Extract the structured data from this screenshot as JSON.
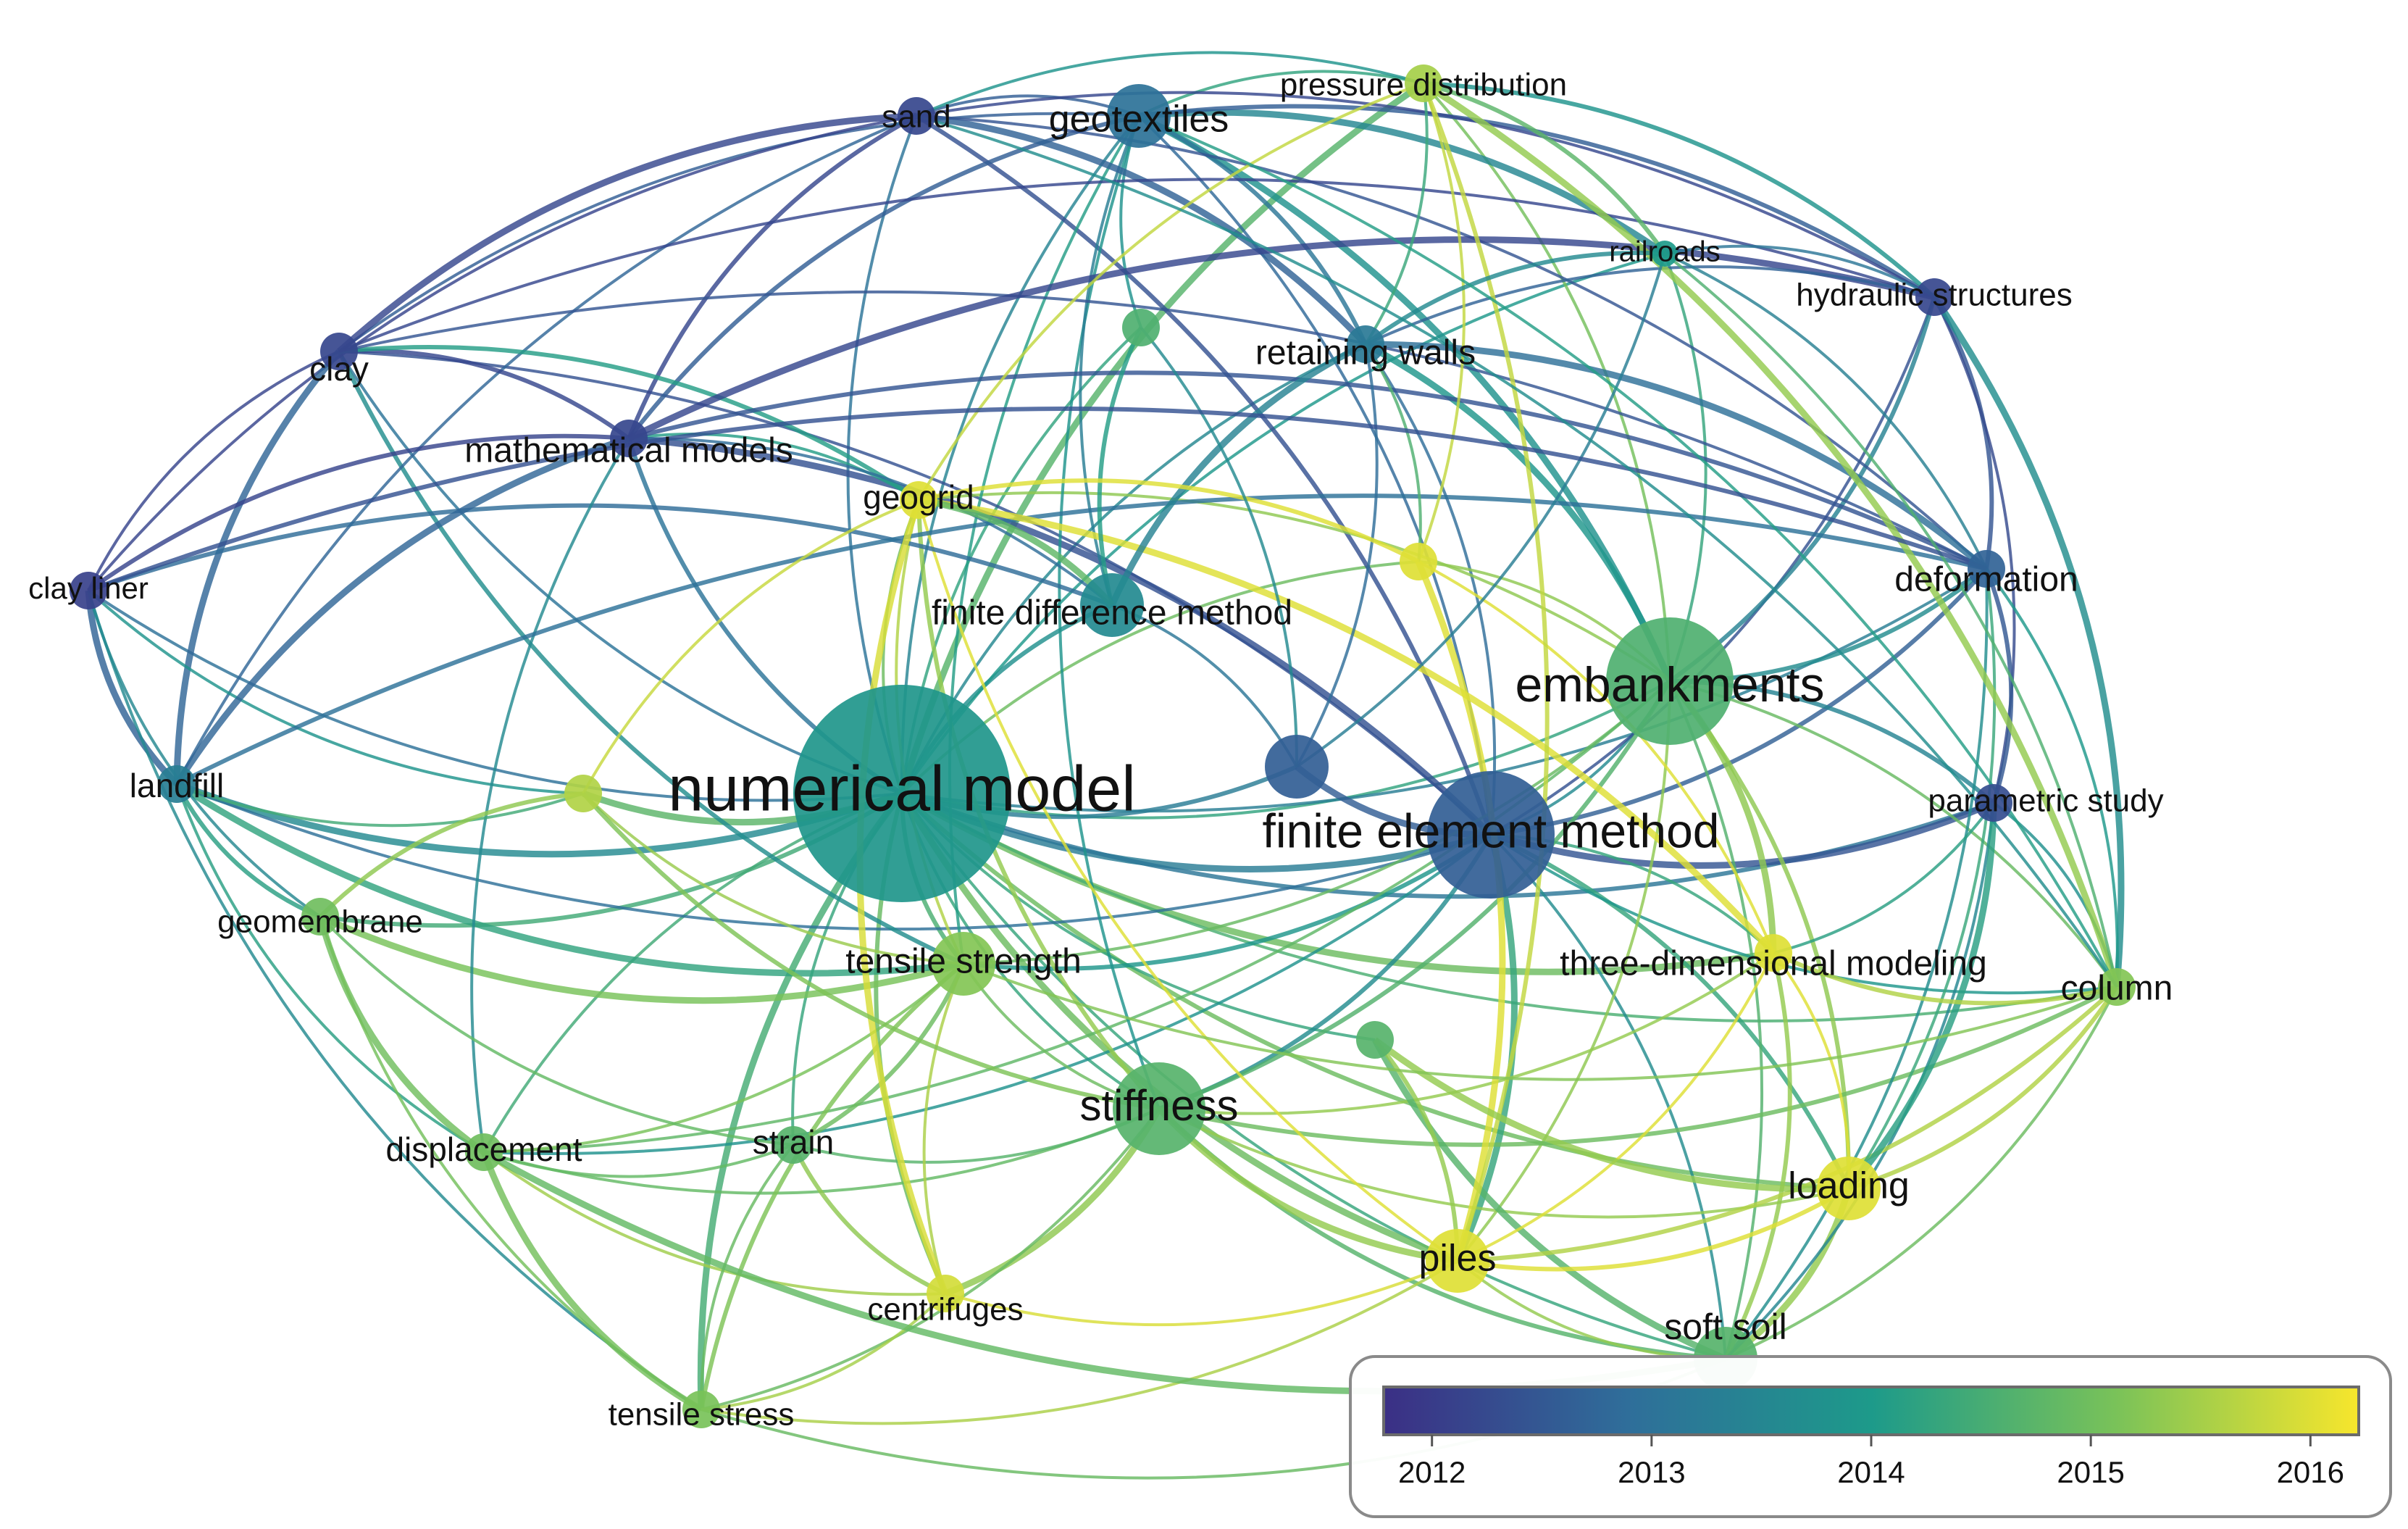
{
  "nodes": [
    {
      "id": "numerical-model",
      "label": "numerical model",
      "year": 2013.9,
      "size": "xl"
    },
    {
      "id": "finite-element-method",
      "label": "finite element method",
      "year": 2012.6,
      "size": "l"
    },
    {
      "id": "embankments",
      "label": "embankments",
      "year": 2014.6,
      "size": "l"
    },
    {
      "id": "stiffness",
      "label": "stiffness",
      "year": 2014.7,
      "size": "ml"
    },
    {
      "id": "tensile-strength",
      "label": "tensile strength",
      "year": 2015.2,
      "size": "m"
    },
    {
      "id": "soft-soil",
      "label": "soft soil",
      "year": 2014.7,
      "size": "m"
    },
    {
      "id": "piles",
      "label": "piles",
      "year": 2016.0,
      "size": "m"
    },
    {
      "id": "loading",
      "label": "loading",
      "year": 2016.0,
      "size": "m"
    },
    {
      "id": "geotextiles",
      "label": "geotextiles",
      "year": 2013.0,
      "size": "m"
    },
    {
      "id": "retaining-walls",
      "label": "retaining walls",
      "year": 2013.2,
      "size": "s"
    },
    {
      "id": "finite-difference-method",
      "label": "finite difference method",
      "year": 2013.6,
      "size": "m"
    },
    {
      "id": "three-dimensional-modeling",
      "label": "three-dimensional modeling",
      "year": 2016.0,
      "size": "s"
    },
    {
      "id": "deformation",
      "label": "deformation",
      "year": 2012.7,
      "size": "s"
    },
    {
      "id": "parametric-study",
      "label": "parametric study",
      "year": 2012.3,
      "size": "s"
    },
    {
      "id": "column",
      "label": "column",
      "year": 2015.2,
      "size": "s"
    },
    {
      "id": "sand",
      "label": "sand",
      "year": 2012.2,
      "size": "s"
    },
    {
      "id": "pressure-distribution",
      "label": "pressure distribution",
      "year": 2015.5,
      "size": "s"
    },
    {
      "id": "railroads",
      "label": "railroads",
      "year": 2014.0,
      "size": "xs"
    },
    {
      "id": "hydraulic-structures",
      "label": "hydraulic structures",
      "year": 2012.2,
      "size": "s"
    },
    {
      "id": "clay",
      "label": "clay",
      "year": 2012.2,
      "size": "s"
    },
    {
      "id": "mathematical-models",
      "label": "mathematical models",
      "year": 2012.2,
      "size": "s"
    },
    {
      "id": "geogrid",
      "label": "geogrid",
      "year": 2016.0,
      "size": "s"
    },
    {
      "id": "clay-liner",
      "label": "clay liner",
      "year": 2012.1,
      "size": "s"
    },
    {
      "id": "landfill",
      "label": "landfill",
      "year": 2013.3,
      "size": "s"
    },
    {
      "id": "geomembrane",
      "label": "geomembrane",
      "year": 2015.0,
      "size": "s"
    },
    {
      "id": "displacement",
      "label": "displacement",
      "year": 2015.0,
      "size": "s"
    },
    {
      "id": "strain",
      "label": "strain",
      "year": 2014.7,
      "size": "s"
    },
    {
      "id": "centrifuges",
      "label": "centrifuges",
      "year": 2015.9,
      "size": "s"
    },
    {
      "id": "tensile-stress",
      "label": "tensile stress",
      "year": 2015.1,
      "size": "s"
    },
    {
      "id": "unlabeled-a",
      "label": "",
      "year": 2014.6,
      "size": "s"
    },
    {
      "id": "unlabeled-b",
      "label": "",
      "year": 2012.6,
      "size": "m"
    },
    {
      "id": "unlabeled-c",
      "label": "",
      "year": 2016.0,
      "size": "s"
    },
    {
      "id": "unlabeled-d",
      "label": "",
      "year": 2014.7,
      "size": "s"
    },
    {
      "id": "unlabeled-e",
      "label": "",
      "year": 2015.6,
      "size": "s"
    }
  ],
  "edges": [
    [
      "numerical-model",
      "finite-element-method"
    ],
    [
      "numerical-model",
      "embankments"
    ],
    [
      "numerical-model",
      "stiffness"
    ],
    [
      "numerical-model",
      "tensile-strength"
    ],
    [
      "numerical-model",
      "soft-soil"
    ],
    [
      "numerical-model",
      "piles"
    ],
    [
      "numerical-model",
      "loading"
    ],
    [
      "numerical-model",
      "geotextiles"
    ],
    [
      "numerical-model",
      "retaining-walls"
    ],
    [
      "numerical-model",
      "finite-difference-method"
    ],
    [
      "numerical-model",
      "three-dimensional-modeling"
    ],
    [
      "numerical-model",
      "deformation"
    ],
    [
      "numerical-model",
      "parametric-study"
    ],
    [
      "numerical-model",
      "column"
    ],
    [
      "numerical-model",
      "sand"
    ],
    [
      "numerical-model",
      "pressure-distribution"
    ],
    [
      "numerical-model",
      "railroads"
    ],
    [
      "numerical-model",
      "clay"
    ],
    [
      "numerical-model",
      "mathematical-models"
    ],
    [
      "numerical-model",
      "geogrid"
    ],
    [
      "numerical-model",
      "landfill"
    ],
    [
      "numerical-model",
      "geomembrane"
    ],
    [
      "numerical-model",
      "displacement"
    ],
    [
      "numerical-model",
      "strain"
    ],
    [
      "numerical-model",
      "centrifuges"
    ],
    [
      "numerical-model",
      "tensile-stress"
    ],
    [
      "numerical-model",
      "unlabeled-a"
    ],
    [
      "numerical-model",
      "unlabeled-b"
    ],
    [
      "numerical-model",
      "unlabeled-c"
    ],
    [
      "numerical-model",
      "unlabeled-d"
    ],
    [
      "numerical-model",
      "unlabeled-e"
    ],
    [
      "numerical-model",
      "clay-liner"
    ],
    [
      "finite-element-method",
      "embankments"
    ],
    [
      "finite-element-method",
      "stiffness"
    ],
    [
      "finite-element-method",
      "soft-soil"
    ],
    [
      "finite-element-method",
      "piles"
    ],
    [
      "finite-element-method",
      "loading"
    ],
    [
      "finite-element-method",
      "geotextiles"
    ],
    [
      "finite-element-method",
      "retaining-walls"
    ],
    [
      "finite-element-method",
      "deformation"
    ],
    [
      "finite-element-method",
      "parametric-study"
    ],
    [
      "finite-element-method",
      "column"
    ],
    [
      "finite-element-method",
      "sand"
    ],
    [
      "finite-element-method",
      "hydraulic-structures"
    ],
    [
      "finite-element-method",
      "clay"
    ],
    [
      "finite-element-method",
      "mathematical-models"
    ],
    [
      "finite-element-method",
      "landfill"
    ],
    [
      "finite-element-method",
      "three-dimensional-modeling"
    ],
    [
      "finite-element-method",
      "tensile-strength"
    ],
    [
      "finite-element-method",
      "displacement"
    ],
    [
      "finite-element-method",
      "unlabeled-b"
    ],
    [
      "embankments",
      "stiffness"
    ],
    [
      "embankments",
      "soft-soil"
    ],
    [
      "embankments",
      "piles"
    ],
    [
      "embankments",
      "loading"
    ],
    [
      "embankments",
      "geotextiles"
    ],
    [
      "embankments",
      "column"
    ],
    [
      "embankments",
      "deformation"
    ],
    [
      "embankments",
      "railroads"
    ],
    [
      "embankments",
      "geogrid"
    ],
    [
      "embankments",
      "three-dimensional-modeling"
    ],
    [
      "embankments",
      "tensile-strength"
    ],
    [
      "embankments",
      "pressure-distribution"
    ],
    [
      "embankments",
      "hydraulic-structures"
    ],
    [
      "embankments",
      "displacement"
    ],
    [
      "embankments",
      "retaining-walls"
    ],
    [
      "embankments",
      "parametric-study"
    ],
    [
      "embankments",
      "unlabeled-c"
    ],
    [
      "stiffness",
      "tensile-strength"
    ],
    [
      "stiffness",
      "soft-soil"
    ],
    [
      "stiffness",
      "piles"
    ],
    [
      "stiffness",
      "loading"
    ],
    [
      "stiffness",
      "geogrid"
    ],
    [
      "stiffness",
      "displacement"
    ],
    [
      "stiffness",
      "strain"
    ],
    [
      "stiffness",
      "centrifuges"
    ],
    [
      "stiffness",
      "geotextiles"
    ],
    [
      "stiffness",
      "tensile-stress"
    ],
    [
      "stiffness",
      "column"
    ],
    [
      "stiffness",
      "three-dimensional-modeling"
    ],
    [
      "tensile-strength",
      "geomembrane"
    ],
    [
      "tensile-strength",
      "strain"
    ],
    [
      "tensile-strength",
      "geogrid"
    ],
    [
      "tensile-strength",
      "displacement"
    ],
    [
      "tensile-strength",
      "tensile-stress"
    ],
    [
      "tensile-strength",
      "landfill"
    ],
    [
      "tensile-strength",
      "geotextiles"
    ],
    [
      "tensile-strength",
      "clay"
    ],
    [
      "tensile-strength",
      "centrifuges"
    ],
    [
      "soft-soil",
      "piles"
    ],
    [
      "soft-soil",
      "loading"
    ],
    [
      "soft-soil",
      "column"
    ],
    [
      "soft-soil",
      "deformation"
    ],
    [
      "soft-soil",
      "three-dimensional-modeling"
    ],
    [
      "soft-soil",
      "parametric-study"
    ],
    [
      "soft-soil",
      "unlabeled-d"
    ],
    [
      "piles",
      "loading"
    ],
    [
      "piles",
      "three-dimensional-modeling"
    ],
    [
      "piles",
      "centrifuges"
    ],
    [
      "piles",
      "column"
    ],
    [
      "piles",
      "unlabeled-c"
    ],
    [
      "piles",
      "geogrid"
    ],
    [
      "loading",
      "column"
    ],
    [
      "loading",
      "three-dimensional-modeling"
    ],
    [
      "loading",
      "deformation"
    ],
    [
      "loading",
      "parametric-study"
    ],
    [
      "geotextiles",
      "sand"
    ],
    [
      "geotextiles",
      "clay"
    ],
    [
      "geotextiles",
      "retaining-walls"
    ],
    [
      "geotextiles",
      "pressure-distribution"
    ],
    [
      "geotextiles",
      "railroads"
    ],
    [
      "geotextiles",
      "mathematical-models"
    ],
    [
      "geotextiles",
      "unlabeled-a"
    ],
    [
      "geotextiles",
      "finite-difference-method"
    ],
    [
      "geotextiles",
      "hydraulic-structures"
    ],
    [
      "sand",
      "clay"
    ],
    [
      "sand",
      "clay-liner"
    ],
    [
      "sand",
      "mathematical-models"
    ],
    [
      "sand",
      "hydraulic-structures"
    ],
    [
      "sand",
      "pressure-distribution"
    ],
    [
      "sand",
      "retaining-walls"
    ],
    [
      "sand",
      "landfill"
    ],
    [
      "sand",
      "deformation"
    ],
    [
      "clay",
      "mathematical-models"
    ],
    [
      "clay",
      "clay-liner"
    ],
    [
      "clay",
      "landfill"
    ],
    [
      "clay",
      "geogrid"
    ],
    [
      "clay",
      "deformation"
    ],
    [
      "clay",
      "hydraulic-structures"
    ],
    [
      "clay-liner",
      "mathematical-models"
    ],
    [
      "clay-liner",
      "landfill"
    ],
    [
      "clay-liner",
      "geomembrane"
    ],
    [
      "clay-liner",
      "finite-difference-method"
    ],
    [
      "clay-liner",
      "tensile-stress"
    ],
    [
      "clay-liner",
      "unlabeled-e"
    ],
    [
      "mathematical-models",
      "landfill"
    ],
    [
      "mathematical-models",
      "geogrid"
    ],
    [
      "mathematical-models",
      "finite-difference-method"
    ],
    [
      "mathematical-models",
      "deformation"
    ],
    [
      "mathematical-models",
      "displacement"
    ],
    [
      "mathematical-models",
      "hydraulic-structures"
    ],
    [
      "landfill",
      "geomembrane"
    ],
    [
      "landfill",
      "unlabeled-e"
    ],
    [
      "landfill",
      "displacement"
    ],
    [
      "landfill",
      "deformation"
    ],
    [
      "geomembrane",
      "displacement"
    ],
    [
      "geomembrane",
      "tensile-stress"
    ],
    [
      "geomembrane",
      "unlabeled-e"
    ],
    [
      "geomembrane",
      "strain"
    ],
    [
      "displacement",
      "strain"
    ],
    [
      "displacement",
      "tensile-stress"
    ],
    [
      "displacement",
      "centrifuges"
    ],
    [
      "strain",
      "tensile-stress"
    ],
    [
      "strain",
      "centrifuges"
    ],
    [
      "centrifuges",
      "tensile-stress"
    ],
    [
      "centrifuges",
      "geogrid"
    ],
    [
      "hydraulic-structures",
      "deformation"
    ],
    [
      "hydraulic-structures",
      "parametric-study"
    ],
    [
      "hydraulic-structures",
      "railroads"
    ],
    [
      "hydraulic-structures",
      "pressure-distribution"
    ],
    [
      "hydraulic-structures",
      "column"
    ],
    [
      "hydraulic-structures",
      "retaining-walls"
    ],
    [
      "deformation",
      "parametric-study"
    ],
    [
      "deformation",
      "column"
    ],
    [
      "deformation",
      "railroads"
    ],
    [
      "deformation",
      "retaining-walls"
    ],
    [
      "parametric-study",
      "column"
    ],
    [
      "parametric-study",
      "three-dimensional-modeling"
    ],
    [
      "three-dimensional-modeling",
      "column"
    ],
    [
      "three-dimensional-modeling",
      "unlabeled-c"
    ],
    [
      "three-dimensional-modeling",
      "geogrid"
    ],
    [
      "pressure-distribution",
      "railroads"
    ],
    [
      "pressure-distribution",
      "retaining-walls"
    ],
    [
      "pressure-distribution",
      "unlabeled-c"
    ],
    [
      "pressure-distribution",
      "piles"
    ],
    [
      "pressure-distribution",
      "column"
    ],
    [
      "pressure-distribution",
      "geogrid"
    ],
    [
      "railroads",
      "retaining-walls"
    ],
    [
      "railroads",
      "unlabeled-b"
    ],
    [
      "railroads",
      "column"
    ],
    [
      "retaining-walls",
      "finite-difference-method"
    ],
    [
      "retaining-walls",
      "unlabeled-b"
    ],
    [
      "retaining-walls",
      "unlabeled-c"
    ],
    [
      "finite-difference-method",
      "unlabeled-a"
    ],
    [
      "finite-difference-method",
      "unlabeled-b"
    ],
    [
      "finite-difference-method",
      "geogrid"
    ],
    [
      "geogrid",
      "unlabeled-c"
    ],
    [
      "geogrid",
      "unlabeled-e"
    ],
    [
      "unlabeled-a",
      "unlabeled-b"
    ],
    [
      "unlabeled-d",
      "piles"
    ],
    [
      "unlabeled-d",
      "loading"
    ],
    [
      "unlabeled-e",
      "tensile-strength"
    ],
    [
      "unlabeled-e",
      "stiffness"
    ],
    [
      "tensile-stress",
      "soft-soil"
    ],
    [
      "tensile-stress",
      "piles"
    ],
    [
      "displacement",
      "soft-soil"
    ],
    [
      "column",
      "geotextiles"
    ],
    [
      "column",
      "tensile-strength"
    ],
    [
      "clay-liner",
      "deformation"
    ],
    [
      "sand",
      "column"
    ]
  ],
  "legend": {
    "ticks": [
      "2012",
      "2013",
      "2014",
      "2015",
      "2016"
    ],
    "min": 2011.78,
    "max": 2016.22,
    "colormap": "viridis"
  }
}
